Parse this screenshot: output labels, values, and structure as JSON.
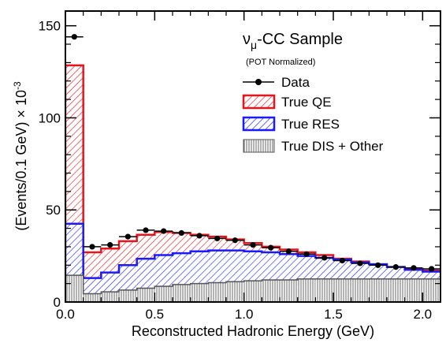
{
  "chart_data": {
    "type": "area",
    "title": "ν_μ-CC Sample",
    "title_main": "ν",
    "title_sub": "μ",
    "title_rest": "-CC Sample",
    "subtitle": "(POT Normalized)",
    "xlabel": "Reconstructed Hadronic Energy (GeV)",
    "ylabel": "(Events/0.1 GeV) × 10",
    "ylabel_exponent": "-3",
    "xlim": [
      0.0,
      2.1
    ],
    "ylim": [
      0,
      158
    ],
    "x_ticks": [
      "0.0",
      "0.5",
      "1.0",
      "1.5",
      "2.0"
    ],
    "y_ticks": [
      "0",
      "50",
      "100",
      "150"
    ],
    "grid": false,
    "legend_position": "top-right",
    "bin_edges": [
      0.0,
      0.1,
      0.2,
      0.3,
      0.4,
      0.5,
      0.6,
      0.7,
      0.8,
      0.9,
      1.0,
      1.1,
      1.2,
      1.3,
      1.4,
      1.5,
      1.6,
      1.7,
      1.8,
      1.9,
      2.0,
      2.1
    ],
    "series": [
      {
        "name": "True DIS + Other",
        "style": "vertical-hatch",
        "color": "#555555",
        "values": [
          14.5,
          4.5,
          5.5,
          6.5,
          7.5,
          8.5,
          9.5,
          10.0,
          10.5,
          11.0,
          11.5,
          12.0,
          12.0,
          12.5,
          12.5,
          12.5,
          12.5,
          12.5,
          12.5,
          12.5,
          12.5
        ]
      },
      {
        "name": "True RES",
        "style": "diagonal-hatch",
        "color": "#1a1aff",
        "values": [
          42.5,
          13.0,
          16.0,
          20.0,
          23.5,
          25.5,
          26.5,
          27.5,
          28.0,
          28.0,
          27.5,
          27.0,
          26.0,
          25.0,
          24.0,
          23.0,
          21.5,
          20.5,
          19.0,
          17.5,
          16.5
        ]
      },
      {
        "name": "True QE",
        "style": "diagonal-hatch",
        "color": "#e8141c",
        "values": [
          128.5,
          27.0,
          29.0,
          33.0,
          36.5,
          38.0,
          37.5,
          36.5,
          35.5,
          34.0,
          32.0,
          30.0,
          28.5,
          27.0,
          25.5,
          23.5,
          22.0,
          20.5,
          19.0,
          18.0,
          17.0
        ]
      },
      {
        "name": "Data",
        "style": "points",
        "color": "#000000",
        "x": [
          0.05,
          0.15,
          0.25,
          0.35,
          0.45,
          0.55,
          0.65,
          0.75,
          0.85,
          0.95,
          1.05,
          1.15,
          1.25,
          1.35,
          1.45,
          1.55,
          1.65,
          1.75,
          1.85,
          1.95,
          2.05
        ],
        "values": [
          144.0,
          30.0,
          31.0,
          35.5,
          39.0,
          38.5,
          37.5,
          36.0,
          34.5,
          33.5,
          31.0,
          29.5,
          27.5,
          26.0,
          24.0,
          22.5,
          21.0,
          20.0,
          19.0,
          18.5,
          18.0
        ]
      }
    ],
    "legend": [
      {
        "name": "Data",
        "marker": "point"
      },
      {
        "name": "True QE",
        "marker": "red-hatch"
      },
      {
        "name": "True RES",
        "marker": "blue-hatch"
      },
      {
        "name": "True DIS + Other",
        "marker": "gray-vhatch"
      }
    ]
  }
}
